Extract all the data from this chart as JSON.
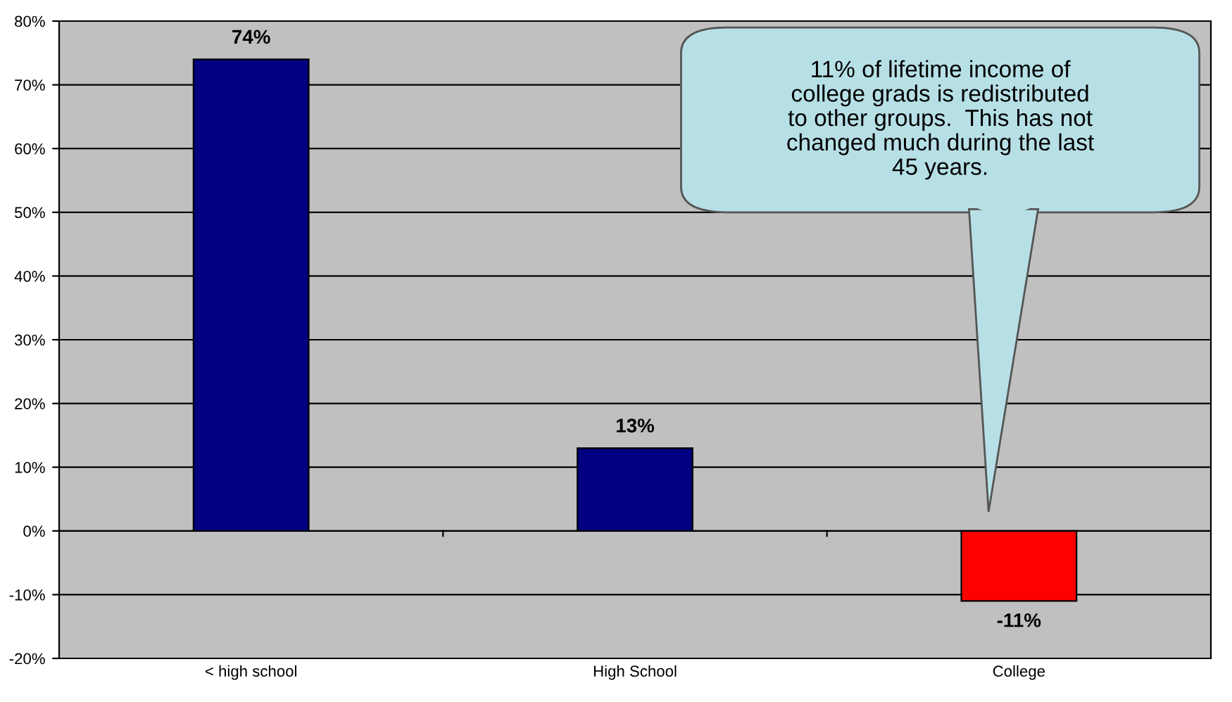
{
  "chart_data": {
    "type": "bar",
    "categories": [
      "< high school",
      "High School",
      "College"
    ],
    "values": [
      74,
      13,
      -11
    ],
    "colors": [
      "#000080",
      "#000080",
      "#ff0000"
    ],
    "data_labels": true,
    "value_labels": [
      "74%",
      "13%",
      "-11%"
    ],
    "ylim": [
      -20,
      80
    ],
    "yticks": [
      {
        "value": -20,
        "label": "-20%"
      },
      {
        "value": -10,
        "label": "-10%"
      },
      {
        "value": 0,
        "label": "0%"
      },
      {
        "value": 10,
        "label": "10%"
      },
      {
        "value": 20,
        "label": "20%"
      },
      {
        "value": 30,
        "label": "30%"
      },
      {
        "value": 40,
        "label": "40%"
      },
      {
        "value": 50,
        "label": "50%"
      },
      {
        "value": 60,
        "label": "60%"
      },
      {
        "value": 70,
        "label": "70%"
      },
      {
        "value": 80,
        "label": "80%"
      }
    ],
    "grid": "y",
    "legend": false,
    "annotations": [
      "11% of lifetime income of\ncollege grads is redistributed\nto other groups.  This has not\nchanged much during the last\n45 years."
    ]
  }
}
